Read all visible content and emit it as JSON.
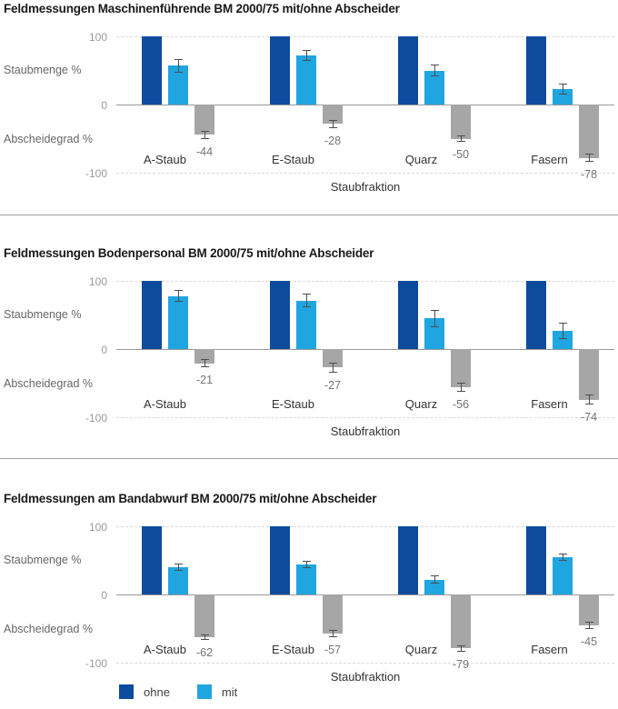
{
  "colors": {
    "ohne": "#0d4c9c",
    "mit": "#1fa6e0",
    "abscheidegrad_bar": "#a6a6a6",
    "error_bar": "#4d4d4d",
    "grid_dashed": "#d9d9d9",
    "zero_axis": "#999999",
    "title_text": "#1a1a1a"
  },
  "legend": {
    "items": [
      {
        "label": "ohne",
        "color": "#0d4c9c"
      },
      {
        "label": "mit",
        "color": "#1fa6e0"
      }
    ]
  },
  "chart_data": [
    {
      "type": "bar",
      "title": "Feldmessungen Maschinenführende BM 2000/75 mit/ohne Abscheider",
      "categories": [
        "A-Staub",
        "E-Staub",
        "Quarz",
        "Fasern"
      ],
      "xlabel": "Staubfraktion",
      "ylabel_positive": "Staubmenge %",
      "ylabel_negative": "Abscheidegrad %",
      "yticks": [
        100,
        0,
        -100
      ],
      "ylim": [
        -100,
        100
      ],
      "grid": "dashed at 100 and -100",
      "series": [
        {
          "name": "ohne",
          "color": "#0d4c9c",
          "values": [
            100,
            100,
            100,
            100
          ],
          "errors": [
            0,
            0,
            0,
            0
          ],
          "show_value_labels": false
        },
        {
          "name": "mit",
          "color": "#1fa6e0",
          "values": [
            57,
            72,
            50,
            23
          ],
          "errors": [
            10,
            8,
            9,
            8
          ],
          "show_value_labels": false
        },
        {
          "name": "Abscheidegrad",
          "color": "#a6a6a6",
          "values": [
            -44,
            -28,
            -50,
            -78
          ],
          "errors": [
            6,
            6,
            5,
            6
          ],
          "show_value_labels": true
        }
      ]
    },
    {
      "type": "bar",
      "title": "Feldmessungen Bodenpersonal BM 2000/75 mit/ohne Abscheider",
      "categories": [
        "A-Staub",
        "E-Staub",
        "Quarz",
        "Fasern"
      ],
      "xlabel": "Staubfraktion",
      "ylabel_positive": "Staubmenge %",
      "ylabel_negative": "Abscheidegrad %",
      "yticks": [
        100,
        0,
        -100
      ],
      "ylim": [
        -100,
        100
      ],
      "grid": "dashed at 100 and -100",
      "series": [
        {
          "name": "ohne",
          "color": "#0d4c9c",
          "values": [
            100,
            100,
            100,
            100
          ],
          "errors": [
            0,
            0,
            0,
            0
          ],
          "show_value_labels": false
        },
        {
          "name": "mit",
          "color": "#1fa6e0",
          "values": [
            78,
            71,
            45,
            27
          ],
          "errors": [
            9,
            10,
            13,
            12
          ],
          "show_value_labels": false
        },
        {
          "name": "Abscheidegrad",
          "color": "#a6a6a6",
          "values": [
            -21,
            -27,
            -56,
            -74
          ],
          "errors": [
            6,
            7,
            7,
            7
          ],
          "show_value_labels": true
        }
      ]
    },
    {
      "type": "bar",
      "title": "Feldmessungen am Bandabwurf BM 2000/75 mit/ohne Abscheider",
      "categories": [
        "A-Staub",
        "E-Staub",
        "Quarz",
        "Fasern"
      ],
      "xlabel": "Staubfraktion",
      "ylabel_positive": "Staubmenge %",
      "ylabel_negative": "Abscheidegrad %",
      "yticks": [
        100,
        0,
        -100
      ],
      "ylim": [
        -100,
        100
      ],
      "grid": "dashed at 100 and -100",
      "series": [
        {
          "name": "ohne",
          "color": "#0d4c9c",
          "values": [
            100,
            100,
            100,
            100
          ],
          "errors": [
            0,
            0,
            0,
            0
          ],
          "show_value_labels": false
        },
        {
          "name": "mit",
          "color": "#1fa6e0",
          "values": [
            40,
            44,
            22,
            55
          ],
          "errors": [
            5,
            5,
            6,
            5
          ],
          "show_value_labels": false
        },
        {
          "name": "Abscheidegrad",
          "color": "#a6a6a6",
          "values": [
            -62,
            -57,
            -79,
            -45
          ],
          "errors": [
            4,
            5,
            5,
            5
          ],
          "show_value_labels": true
        }
      ]
    }
  ]
}
